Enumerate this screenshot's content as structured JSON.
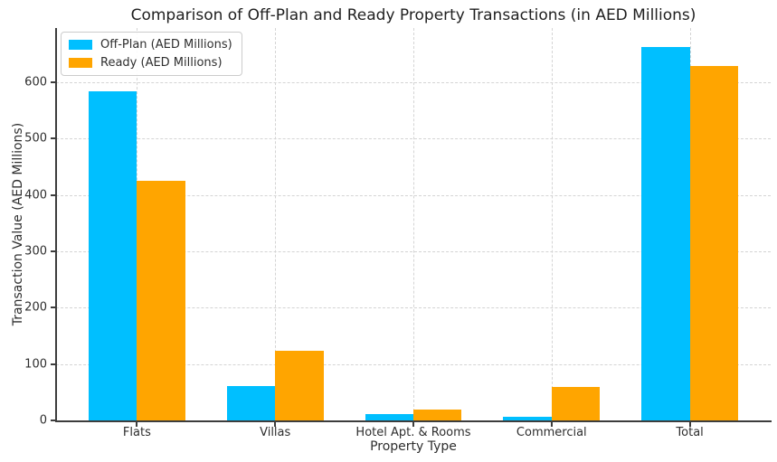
{
  "chart_data": {
    "type": "bar",
    "title": "Comparison of Off-Plan and Ready Property Transactions (in AED Millions)",
    "xlabel": "Property Type",
    "ylabel": "Transaction Value (AED Millions)",
    "categories": [
      "Flats",
      "Villas",
      "Hotel Apt. & Rooms",
      "Commercial",
      "Total"
    ],
    "series": [
      {
        "name": "Off-Plan (AED Millions)",
        "color": "#00BFFF",
        "values": [
          583,
          61,
          12,
          7,
          663
        ]
      },
      {
        "name": "Ready (AED Millions)",
        "color": "#FFA500",
        "values": [
          425,
          124,
          19,
          60,
          628
        ]
      }
    ],
    "ylim": [
      0,
      696
    ],
    "yticks": [
      0,
      100,
      200,
      300,
      400,
      500,
      600
    ],
    "xlim": [
      -0.585,
      4.585
    ],
    "bar_width": 0.35,
    "grid": "both-dashed",
    "legend_position": "upper-left"
  }
}
